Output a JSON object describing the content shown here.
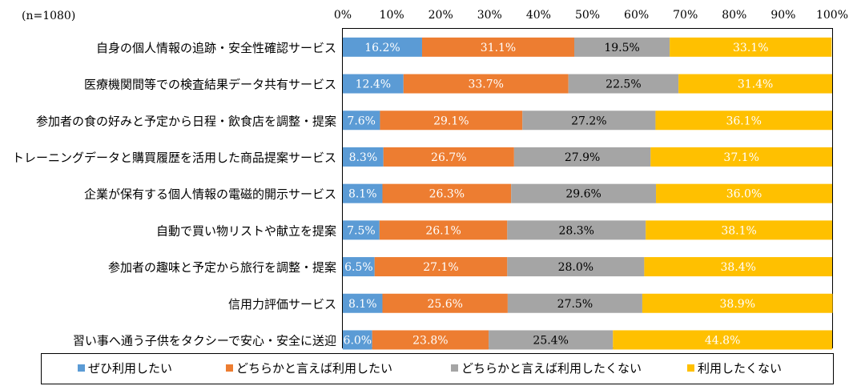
{
  "chart_data": {
    "type": "bar",
    "orientation": "horizontal",
    "stacked": "percent",
    "note": "(n=1080)",
    "categories": [
      "自身の個人情報の追跡・安全性確認サービス",
      "医療機関間等での検査結果データ共有サービス",
      "参加者の食の好みと予定から日程・飲食店を調整・提案",
      "トレーニングデータと購買履歴を活用した商品提案サービス",
      "企業が保有する個人情報の電磁的開示サービス",
      "自動で買い物リストや献立を提案",
      "参加者の趣味と予定から旅行を調整・提案",
      "信用力評価サービス",
      "習い事へ通う子供をタクシーで安心・安全に送迎"
    ],
    "series": [
      {
        "name": "ぜひ利用したい",
        "color": "#5b9bd5",
        "values": [
          16.2,
          12.4,
          7.6,
          8.3,
          8.1,
          7.5,
          6.5,
          8.1,
          6.0
        ],
        "labels": [
          "16.2%",
          "12.4%",
          "7.6%",
          "8.3%",
          "8.1%",
          "7.5%",
          "6.5%",
          "8.1%",
          "6.0%"
        ]
      },
      {
        "name": "どちらかと言えば利用したい",
        "color": "#ed7d31",
        "values": [
          31.1,
          33.7,
          29.1,
          26.7,
          26.3,
          26.1,
          27.1,
          25.6,
          23.8
        ],
        "labels": [
          "31.1%",
          "33.7%",
          "29.1%",
          "26.7%",
          "26.3%",
          "26.1%",
          "27.1%",
          "25.6%",
          "23.8%"
        ]
      },
      {
        "name": "どちらかと言えば利用したくない",
        "color": "#a5a5a5",
        "values": [
          19.5,
          22.5,
          27.2,
          27.9,
          29.6,
          28.3,
          28.0,
          27.5,
          25.4
        ],
        "labels": [
          "19.5%",
          "22.5%",
          "27.2%",
          "27.9%",
          "29.6%",
          "28.3%",
          "28.0%",
          "27.5%",
          "25.4%"
        ]
      },
      {
        "name": "利用したくない",
        "color": "#ffc000",
        "values": [
          33.1,
          31.4,
          36.1,
          37.1,
          36.0,
          38.1,
          38.4,
          38.9,
          44.8
        ],
        "labels": [
          "33.1%",
          "31.4%",
          "36.1%",
          "37.1%",
          "36.0%",
          "38.1%",
          "38.4%",
          "38.9%",
          "44.8%"
        ]
      }
    ],
    "x_ticks": [
      "0%",
      "10%",
      "20%",
      "30%",
      "40%",
      "50%",
      "60%",
      "70%",
      "80%",
      "90%",
      "100%"
    ],
    "xlim": [
      0,
      100
    ],
    "legend_position": "bottom",
    "grid": false
  }
}
